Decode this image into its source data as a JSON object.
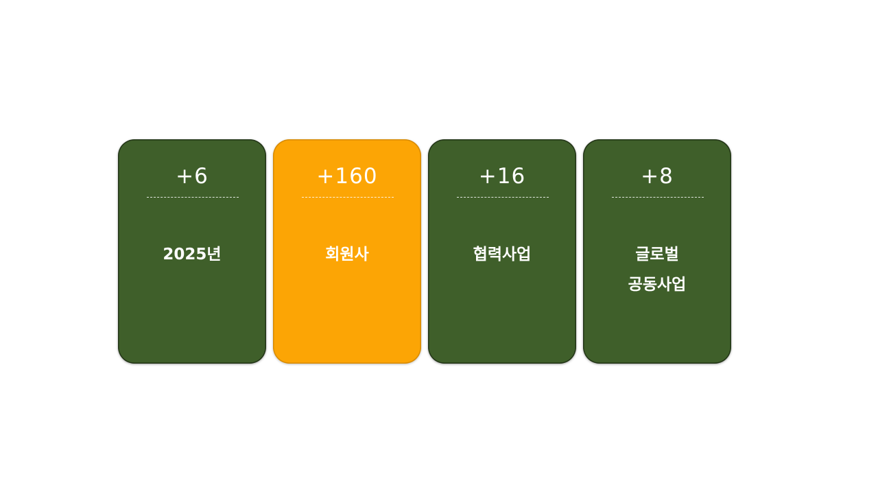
{
  "cards": [
    {
      "value": "+6",
      "label_lines": [
        "2025년"
      ],
      "color": "#3f5f2a"
    },
    {
      "value": "+160",
      "label_lines": [
        "회원사"
      ],
      "color": "#fca505"
    },
    {
      "value": "+16",
      "label_lines": [
        "협력사업"
      ],
      "color": "#3f5f2a"
    },
    {
      "value": "+8",
      "label_lines": [
        "글로벌",
        "공동사업"
      ],
      "color": "#3f5f2a"
    }
  ]
}
